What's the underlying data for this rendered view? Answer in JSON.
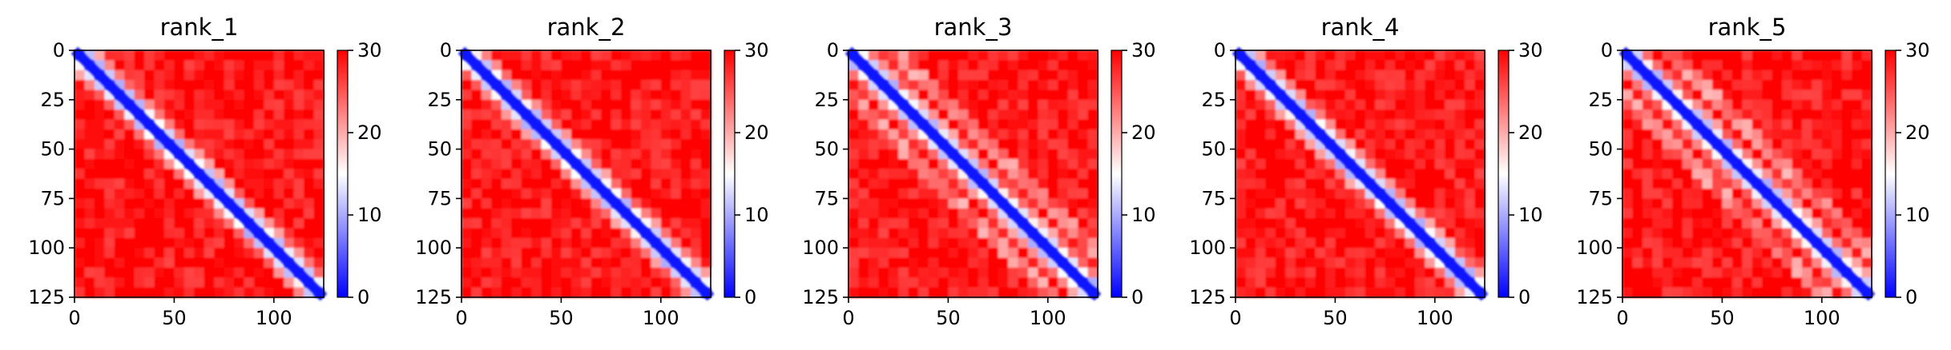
{
  "chart_data": [
    {
      "type": "heatmap",
      "title": "rank_1",
      "x_ticks": [
        "0",
        "50",
        "100"
      ],
      "y_ticks": [
        "0",
        "25",
        "50",
        "75",
        "100",
        "125"
      ],
      "xlim": [
        0,
        125
      ],
      "ylim": [
        125,
        0
      ],
      "colorbar": {
        "ticks": [
          "0",
          "10",
          "20",
          "30"
        ],
        "range": [
          0,
          30
        ],
        "colormap": "bwr"
      },
      "pattern": {
        "matrix_size": 125,
        "diagonal_band": "blue",
        "off_diagonal": "red",
        "side_bands": false
      }
    },
    {
      "type": "heatmap",
      "title": "rank_2",
      "x_ticks": [
        "0",
        "50",
        "100"
      ],
      "y_ticks": [
        "0",
        "25",
        "50",
        "75",
        "100",
        "125"
      ],
      "xlim": [
        0,
        125
      ],
      "ylim": [
        125,
        0
      ],
      "colorbar": {
        "ticks": [
          "0",
          "10",
          "20",
          "30"
        ],
        "range": [
          0,
          30
        ],
        "colormap": "bwr"
      },
      "pattern": {
        "matrix_size": 125,
        "diagonal_band": "blue",
        "off_diagonal": "red",
        "side_bands": false
      }
    },
    {
      "type": "heatmap",
      "title": "rank_3",
      "x_ticks": [
        "0",
        "50",
        "100"
      ],
      "y_ticks": [
        "0",
        "25",
        "50",
        "75",
        "100",
        "125"
      ],
      "xlim": [
        0,
        125
      ],
      "ylim": [
        125,
        0
      ],
      "colorbar": {
        "ticks": [
          "0",
          "10",
          "20",
          "30"
        ],
        "range": [
          0,
          30
        ],
        "colormap": "bwr"
      },
      "pattern": {
        "matrix_size": 125,
        "diagonal_band": "blue",
        "off_diagonal": "red",
        "side_bands": true
      }
    },
    {
      "type": "heatmap",
      "title": "rank_4",
      "x_ticks": [
        "0",
        "50",
        "100"
      ],
      "y_ticks": [
        "0",
        "25",
        "50",
        "75",
        "100",
        "125"
      ],
      "xlim": [
        0,
        125
      ],
      "ylim": [
        125,
        0
      ],
      "colorbar": {
        "ticks": [
          "0",
          "10",
          "20",
          "30"
        ],
        "range": [
          0,
          30
        ],
        "colormap": "bwr"
      },
      "pattern": {
        "matrix_size": 125,
        "diagonal_band": "blue",
        "off_diagonal": "red",
        "side_bands": false
      }
    },
    {
      "type": "heatmap",
      "title": "rank_5",
      "x_ticks": [
        "0",
        "50",
        "100"
      ],
      "y_ticks": [
        "0",
        "25",
        "50",
        "75",
        "100",
        "125"
      ],
      "xlim": [
        0,
        125
      ],
      "ylim": [
        125,
        0
      ],
      "colorbar": {
        "ticks": [
          "0",
          "10",
          "20",
          "30"
        ],
        "range": [
          0,
          30
        ],
        "colormap": "bwr"
      },
      "pattern": {
        "matrix_size": 125,
        "diagonal_band": "blue",
        "off_diagonal": "red",
        "side_bands": true
      }
    }
  ]
}
